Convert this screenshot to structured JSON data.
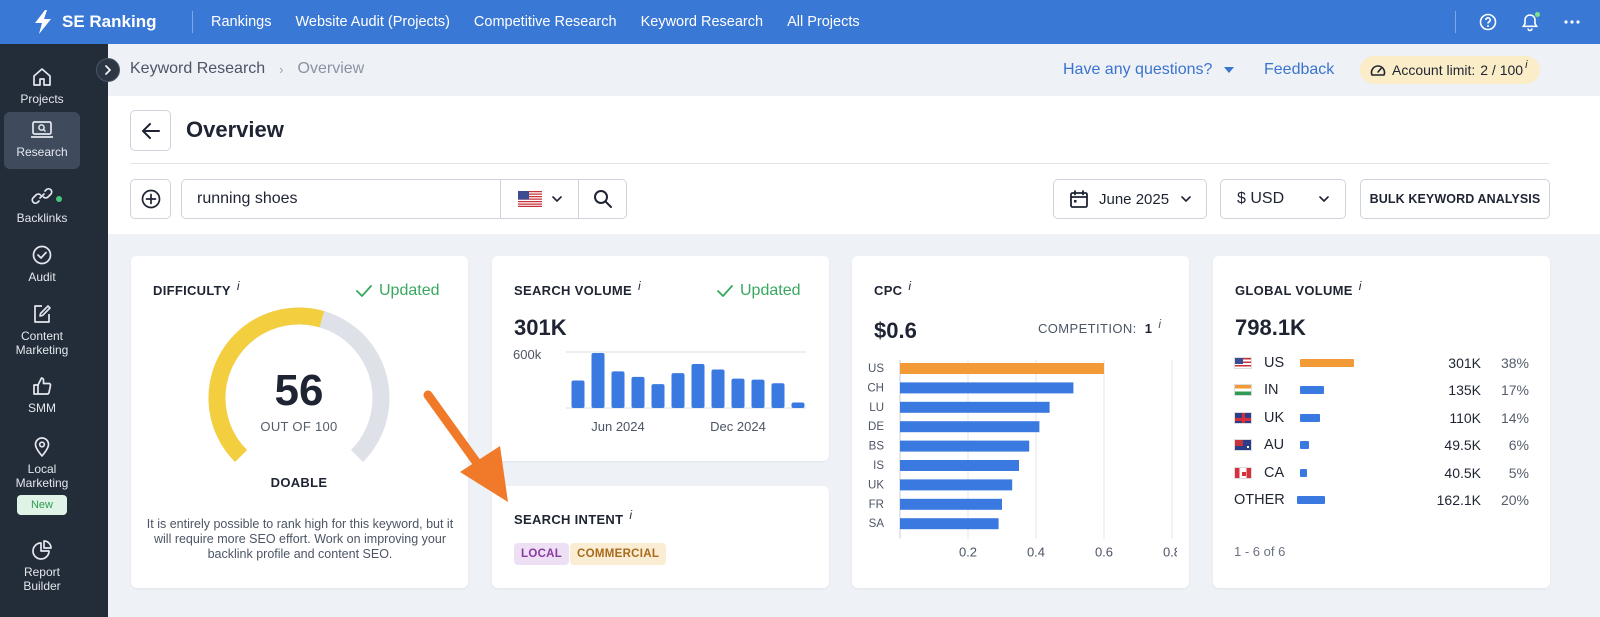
{
  "topbar": {
    "logo": "SE Ranking",
    "nav": [
      "Rankings",
      "Website Audit (Projects)",
      "Competitive Research",
      "Keyword Research",
      "All Projects"
    ],
    "icons": [
      "help-icon",
      "bell-icon",
      "more-icon"
    ]
  },
  "sidebar": {
    "items": [
      {
        "label": "Projects",
        "icon": "home-icon"
      },
      {
        "label": "Research",
        "icon": "research-icon"
      },
      {
        "label": "Backlinks",
        "icon": "link-icon"
      },
      {
        "label": "Audit",
        "icon": "check-circle-icon"
      },
      {
        "label": "Content\nMarketing",
        "icon": "edit-icon"
      },
      {
        "label": "SMM",
        "icon": "thumbs-up-icon"
      },
      {
        "label": "Local\nMarketing",
        "icon": "location-pin-icon",
        "badge": "New"
      },
      {
        "label": "Report\nBuilder",
        "icon": "pie-chart-icon"
      }
    ]
  },
  "breadcrumb": {
    "parent": "Keyword Research",
    "current": "Overview"
  },
  "header": {
    "help": "Have any questions?",
    "feedback": "Feedback",
    "limit_label": "Account limit:",
    "limit_value": "2 / 100",
    "info": "i"
  },
  "page": {
    "title": "Overview"
  },
  "search": {
    "value": "running shoes",
    "country": "US",
    "date": "June 2025",
    "currency": "$ USD",
    "bulk": "BULK KEYWORD ANALYSIS"
  },
  "difficulty": {
    "title": "DIFFICULTY",
    "status": "Updated",
    "value": "56",
    "score": 56,
    "max": 100,
    "out_of": "OUT OF 100",
    "label": "DOABLE",
    "description": "It is entirely possible to rank high for this keyword, but it will require more SEO effort. Work on improving your backlink profile and content SEO.",
    "colors": {
      "fill": "#f3cf3f",
      "track": "#dfe1e8"
    }
  },
  "search_volume": {
    "title": "SEARCH VOLUME",
    "status": "Updated",
    "value": "301K",
    "chart_data": {
      "type": "bar",
      "y_tick": "600k",
      "ylim": [
        0,
        600
      ],
      "x_ticks": [
        "Jun 2024",
        "Dec 2024"
      ],
      "values": [
        300,
        600,
        400,
        340,
        260,
        380,
        480,
        420,
        320,
        310,
        270,
        60
      ],
      "color": "#3a7ae0"
    }
  },
  "search_intent": {
    "title": "SEARCH INTENT",
    "tags": [
      "LOCAL",
      "COMMERCIAL"
    ]
  },
  "cpc": {
    "title": "CPC",
    "value": "$0.6",
    "competition_label": "COMPETITION:",
    "competition_value": "1",
    "chart_data": {
      "type": "bar",
      "orientation": "horizontal",
      "categories": [
        "US",
        "CH",
        "LU",
        "DE",
        "BS",
        "IS",
        "UK",
        "FR",
        "SA"
      ],
      "values": [
        0.6,
        0.51,
        0.44,
        0.41,
        0.38,
        0.35,
        0.33,
        0.3,
        0.29
      ],
      "x_ticks": [
        "0.2",
        "0.4",
        "0.6",
        "0.8"
      ],
      "xlim": [
        0,
        0.8
      ],
      "highlight_color": "#f29a36",
      "color": "#3a7ae0"
    }
  },
  "global_volume": {
    "title": "GLOBAL VOLUME",
    "value": "798.1K",
    "rows": [
      {
        "code": "US",
        "flag": "us",
        "value": "301K",
        "pct": "38%",
        "share": 0.38
      },
      {
        "code": "IN",
        "flag": "in",
        "value": "135K",
        "pct": "17%",
        "share": 0.17
      },
      {
        "code": "UK",
        "flag": "uk",
        "value": "110K",
        "pct": "14%",
        "share": 0.14
      },
      {
        "code": "AU",
        "flag": "au",
        "value": "49.5K",
        "pct": "6%",
        "share": 0.06
      },
      {
        "code": "CA",
        "flag": "ca",
        "value": "40.5K",
        "pct": "5%",
        "share": 0.05
      },
      {
        "code": "OTHER",
        "flag": "",
        "value": "162.1K",
        "pct": "20%",
        "share": 0.2
      }
    ],
    "footer": "1 - 6 of 6"
  }
}
